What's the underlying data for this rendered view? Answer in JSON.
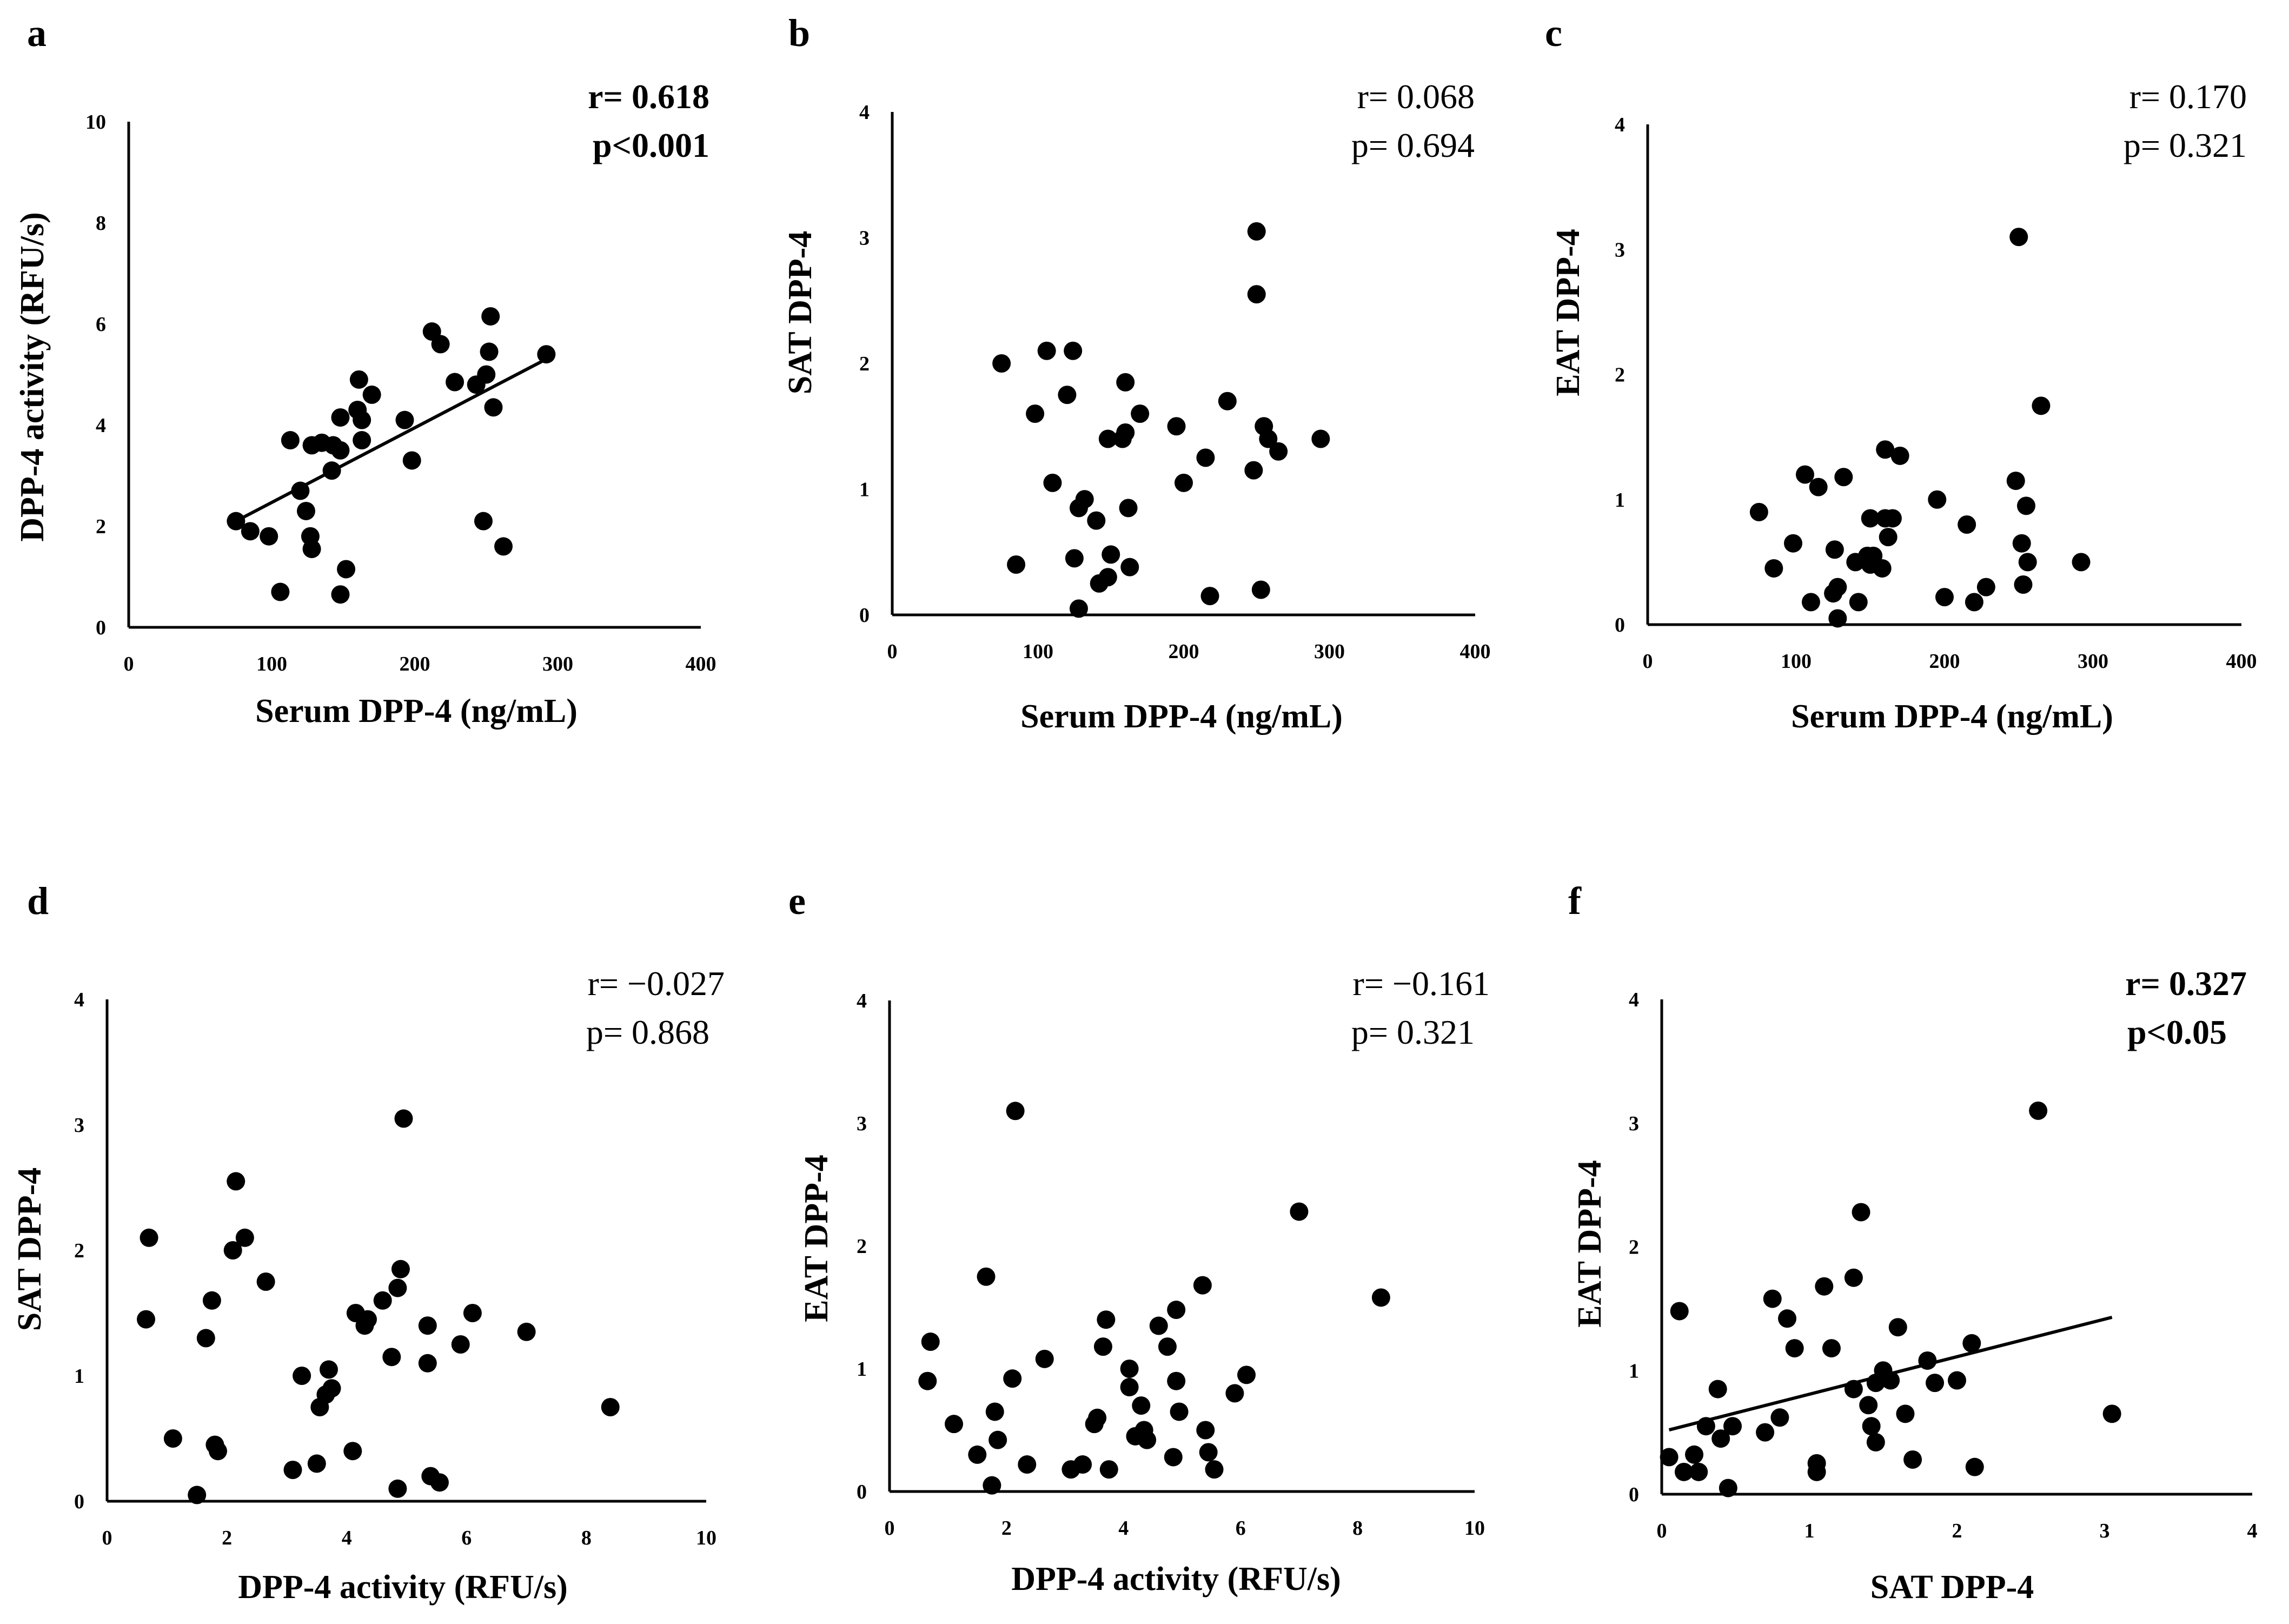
{
  "chart_data": [
    {
      "type": "scatter",
      "panel": "a",
      "xlabel": "Serum DPP-4 (ng/mL)",
      "ylabel": "DPP-4 activity (RFU/s)",
      "xlim": [
        0,
        400
      ],
      "ylim": [
        0,
        10
      ],
      "xticks": [
        "0",
        "100",
        "200",
        "300",
        "400"
      ],
      "yticks": [
        "0",
        "2",
        "4",
        "6",
        "8",
        "10"
      ],
      "stat_r": "r= 0.618",
      "stat_p": "p<0.001",
      "stat_bold": true,
      "trendline": {
        "x": [
          75,
          295
        ],
        "y": [
          2.1,
          5.35
        ]
      },
      "points": [
        [
          75,
          2.1
        ],
        [
          85,
          1.9
        ],
        [
          98,
          1.8
        ],
        [
          106,
          0.7
        ],
        [
          113,
          3.7
        ],
        [
          120,
          2.7
        ],
        [
          124,
          2.3
        ],
        [
          127,
          1.8
        ],
        [
          128,
          1.55
        ],
        [
          128,
          3.6
        ],
        [
          135,
          3.65
        ],
        [
          142,
          3.1
        ],
        [
          143,
          3.6
        ],
        [
          148,
          3.5
        ],
        [
          148,
          4.15
        ],
        [
          148,
          0.65
        ],
        [
          152,
          1.15
        ],
        [
          160,
          4.3
        ],
        [
          161,
          4.9
        ],
        [
          163,
          4.1
        ],
        [
          163,
          3.7
        ],
        [
          170,
          4.6
        ],
        [
          193,
          4.1
        ],
        [
          198,
          3.3
        ],
        [
          212,
          5.85
        ],
        [
          218,
          5.6
        ],
        [
          228,
          4.85
        ],
        [
          243,
          4.8
        ],
        [
          248,
          2.1
        ],
        [
          250,
          5.0
        ],
        [
          252,
          5.45
        ],
        [
          253,
          6.15
        ],
        [
          255,
          4.35
        ],
        [
          262,
          1.6
        ],
        [
          292,
          5.4
        ]
      ]
    },
    {
      "type": "scatter",
      "panel": "b",
      "xlabel": "Serum DPP-4 (ng/mL)",
      "ylabel": "SAT DPP-4",
      "xlim": [
        0,
        400
      ],
      "ylim": [
        0,
        4
      ],
      "xticks": [
        "0",
        "100",
        "200",
        "300",
        "400"
      ],
      "yticks": [
        "0",
        "1",
        "2",
        "3",
        "4"
      ],
      "stat_r": "r= 0.068",
      "stat_p": "p= 0.694",
      "stat_bold": false,
      "points": [
        [
          75,
          2.0
        ],
        [
          85,
          0.4
        ],
        [
          98,
          1.6
        ],
        [
          106,
          2.1
        ],
        [
          110,
          1.05
        ],
        [
          120,
          1.75
        ],
        [
          124,
          2.1
        ],
        [
          125,
          0.45
        ],
        [
          128,
          0.85
        ],
        [
          128,
          0.05
        ],
        [
          132,
          0.92
        ],
        [
          140,
          0.75
        ],
        [
          142,
          0.25
        ],
        [
          148,
          0.3
        ],
        [
          148,
          1.4
        ],
        [
          150,
          0.48
        ],
        [
          158,
          1.4
        ],
        [
          160,
          1.45
        ],
        [
          160,
          1.85
        ],
        [
          162,
          0.85
        ],
        [
          163,
          0.38
        ],
        [
          170,
          1.6
        ],
        [
          195,
          1.5
        ],
        [
          200,
          1.05
        ],
        [
          215,
          1.25
        ],
        [
          218,
          0.15
        ],
        [
          230,
          1.7
        ],
        [
          248,
          1.15
        ],
        [
          250,
          2.55
        ],
        [
          250,
          3.05
        ],
        [
          253,
          0.2
        ],
        [
          255,
          1.5
        ],
        [
          258,
          1.4
        ],
        [
          265,
          1.3
        ],
        [
          294,
          1.4
        ]
      ]
    },
    {
      "type": "scatter",
      "panel": "c",
      "xlabel": "Serum DPP-4 (ng/mL)",
      "ylabel": "EAT DPP-4",
      "xlim": [
        0,
        400
      ],
      "ylim": [
        0,
        4
      ],
      "xticks": [
        "0",
        "100",
        "200",
        "300",
        "400"
      ],
      "yticks": [
        "0",
        "1",
        "2",
        "3",
        "4"
      ],
      "stat_r": "r= 0.170",
      "stat_p": "p= 0.321",
      "stat_bold": false,
      "points": [
        [
          75,
          0.9
        ],
        [
          85,
          0.45
        ],
        [
          98,
          0.65
        ],
        [
          106,
          1.2
        ],
        [
          110,
          0.18
        ],
        [
          115,
          1.1
        ],
        [
          125,
          0.25
        ],
        [
          126,
          0.6
        ],
        [
          128,
          0.05
        ],
        [
          128,
          0.3
        ],
        [
          132,
          1.18
        ],
        [
          140,
          0.5
        ],
        [
          142,
          0.18
        ],
        [
          148,
          0.55
        ],
        [
          150,
          0.85
        ],
        [
          150,
          0.48
        ],
        [
          152,
          0.55
        ],
        [
          158,
          0.45
        ],
        [
          160,
          0.85
        ],
        [
          160,
          1.4
        ],
        [
          162,
          0.7
        ],
        [
          165,
          0.85
        ],
        [
          170,
          1.35
        ],
        [
          195,
          1.0
        ],
        [
          200,
          0.22
        ],
        [
          215,
          0.8
        ],
        [
          220,
          0.18
        ],
        [
          228,
          0.3
        ],
        [
          248,
          1.15
        ],
        [
          250,
          3.1
        ],
        [
          252,
          0.65
        ],
        [
          253,
          0.32
        ],
        [
          255,
          0.95
        ],
        [
          256,
          0.5
        ],
        [
          265,
          1.75
        ],
        [
          292,
          0.5
        ]
      ]
    },
    {
      "type": "scatter",
      "panel": "d",
      "xlabel": "DPP-4 activity (RFU/s)",
      "ylabel": "SAT  DPP-4",
      "xlim": [
        0,
        10
      ],
      "ylim": [
        0,
        4
      ],
      "xticks": [
        "0",
        "2",
        "4",
        "6",
        "8",
        "10"
      ],
      "yticks": [
        "0",
        "1",
        "2",
        "3",
        "4"
      ],
      "stat_r": "r= −0.027",
      "stat_p": "p= 0.868",
      "stat_bold": false,
      "points": [
        [
          0.65,
          1.45
        ],
        [
          0.7,
          2.1
        ],
        [
          1.1,
          0.5
        ],
        [
          1.5,
          0.05
        ],
        [
          1.65,
          1.3
        ],
        [
          1.75,
          1.6
        ],
        [
          1.8,
          0.45
        ],
        [
          1.85,
          0.4
        ],
        [
          2.1,
          2.0
        ],
        [
          2.15,
          2.55
        ],
        [
          2.3,
          2.1
        ],
        [
          2.65,
          1.75
        ],
        [
          3.1,
          0.25
        ],
        [
          3.25,
          1.0
        ],
        [
          3.5,
          0.3
        ],
        [
          3.55,
          0.75
        ],
        [
          3.65,
          0.85
        ],
        [
          3.7,
          1.05
        ],
        [
          3.75,
          0.9
        ],
        [
          4.1,
          0.4
        ],
        [
          4.15,
          1.5
        ],
        [
          4.3,
          1.4
        ],
        [
          4.35,
          1.45
        ],
        [
          4.6,
          1.6
        ],
        [
          4.75,
          1.15
        ],
        [
          4.85,
          1.7
        ],
        [
          4.85,
          0.1
        ],
        [
          4.9,
          1.85
        ],
        [
          4.95,
          3.05
        ],
        [
          5.35,
          1.1
        ],
        [
          5.35,
          1.4
        ],
        [
          5.4,
          0.2
        ],
        [
          5.55,
          0.15
        ],
        [
          5.9,
          1.25
        ],
        [
          6.1,
          1.5
        ],
        [
          7.0,
          1.35
        ],
        [
          8.4,
          0.75
        ]
      ]
    },
    {
      "type": "scatter",
      "panel": "e",
      "xlabel": "DPP-4 activity (RFU/s)",
      "ylabel": "EAT DPP-4",
      "xlim": [
        0,
        10
      ],
      "ylim": [
        0,
        4
      ],
      "xticks": [
        "0",
        "2",
        "4",
        "6",
        "8",
        "10"
      ],
      "yticks": [
        "0",
        "1",
        "2",
        "3",
        "4"
      ],
      "stat_r": "r= −0.161",
      "stat_p": "p= 0.321",
      "stat_bold": false,
      "points": [
        [
          0.65,
          0.9
        ],
        [
          0.7,
          1.22
        ],
        [
          1.1,
          0.55
        ],
        [
          1.5,
          0.3
        ],
        [
          1.65,
          1.75
        ],
        [
          1.75,
          0.05
        ],
        [
          1.8,
          0.65
        ],
        [
          1.85,
          0.42
        ],
        [
          2.1,
          0.92
        ],
        [
          2.15,
          3.1
        ],
        [
          2.35,
          0.22
        ],
        [
          2.65,
          1.08
        ],
        [
          3.1,
          0.18
        ],
        [
          3.3,
          0.22
        ],
        [
          3.5,
          0.55
        ],
        [
          3.55,
          0.6
        ],
        [
          3.65,
          1.18
        ],
        [
          3.7,
          1.4
        ],
        [
          3.75,
          0.18
        ],
        [
          4.1,
          1.0
        ],
        [
          4.1,
          0.85
        ],
        [
          4.2,
          0.45
        ],
        [
          4.3,
          0.7
        ],
        [
          4.35,
          0.5
        ],
        [
          4.4,
          0.42
        ],
        [
          4.6,
          1.35
        ],
        [
          4.75,
          1.18
        ],
        [
          4.85,
          0.28
        ],
        [
          4.9,
          1.48
        ],
        [
          4.9,
          0.9
        ],
        [
          4.95,
          0.65
        ],
        [
          5.35,
          1.68
        ],
        [
          5.4,
          0.5
        ],
        [
          5.45,
          0.32
        ],
        [
          5.55,
          0.18
        ],
        [
          5.9,
          0.8
        ],
        [
          6.1,
          0.95
        ],
        [
          7.0,
          2.28
        ],
        [
          8.4,
          1.58
        ]
      ]
    },
    {
      "type": "scatter",
      "panel": "f",
      "xlabel": "SAT DPP-4",
      "ylabel": "EAT DPP-4",
      "xlim": [
        0,
        4
      ],
      "ylim": [
        0,
        4
      ],
      "xticks": [
        "0",
        "1",
        "2",
        "3",
        "4"
      ],
      "yticks": [
        "0",
        "1",
        "2",
        "3",
        "4"
      ],
      "stat_r": "r= 0.327",
      "stat_p": "p<0.05",
      "stat_bold": true,
      "trendline": {
        "x": [
          0.05,
          3.05
        ],
        "y": [
          0.52,
          1.43
        ]
      },
      "points": [
        [
          0.05,
          0.3
        ],
        [
          0.12,
          1.48
        ],
        [
          0.15,
          0.18
        ],
        [
          0.22,
          0.32
        ],
        [
          0.25,
          0.18
        ],
        [
          0.3,
          0.55
        ],
        [
          0.38,
          0.85
        ],
        [
          0.4,
          0.45
        ],
        [
          0.45,
          0.05
        ],
        [
          0.48,
          0.55
        ],
        [
          0.7,
          0.5
        ],
        [
          0.75,
          1.58
        ],
        [
          0.8,
          0.62
        ],
        [
          0.85,
          1.42
        ],
        [
          0.9,
          1.18
        ],
        [
          1.05,
          0.25
        ],
        [
          1.05,
          0.18
        ],
        [
          1.1,
          1.68
        ],
        [
          1.15,
          1.18
        ],
        [
          1.3,
          0.85
        ],
        [
          1.3,
          1.75
        ],
        [
          1.35,
          2.28
        ],
        [
          1.4,
          0.72
        ],
        [
          1.42,
          0.55
        ],
        [
          1.45,
          0.9
        ],
        [
          1.45,
          0.42
        ],
        [
          1.5,
          1.0
        ],
        [
          1.55,
          0.92
        ],
        [
          1.6,
          1.35
        ],
        [
          1.65,
          0.65
        ],
        [
          1.7,
          0.28
        ],
        [
          1.8,
          1.08
        ],
        [
          1.85,
          0.9
        ],
        [
          2.0,
          0.92
        ],
        [
          2.1,
          1.22
        ],
        [
          2.12,
          0.22
        ],
        [
          2.55,
          3.1
        ],
        [
          3.05,
          0.65
        ]
      ]
    }
  ]
}
